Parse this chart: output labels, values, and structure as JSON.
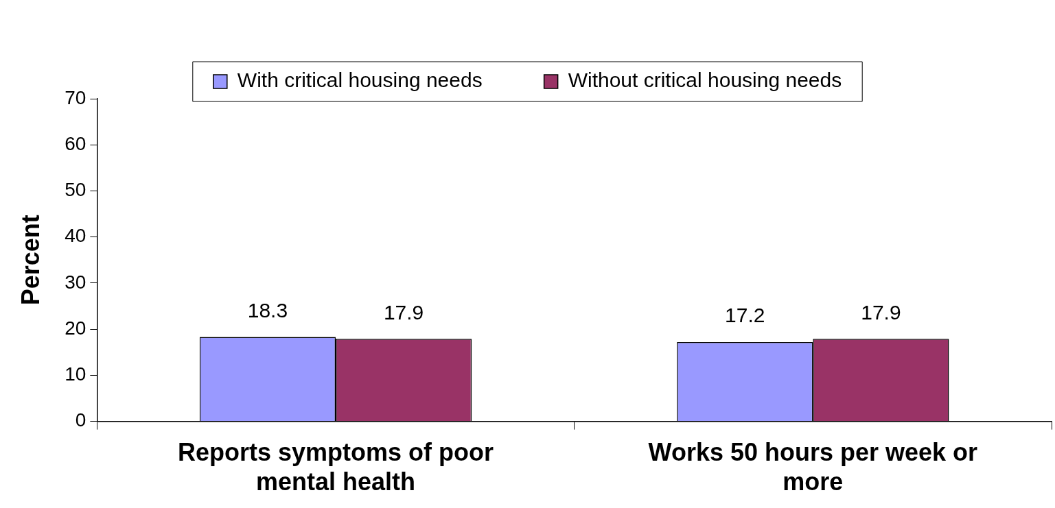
{
  "chart_data": {
    "type": "bar",
    "ylabel": "Percent",
    "categories": [
      "Reports symptoms of poor mental health",
      "Works 50 hours per week or more"
    ],
    "series": [
      {
        "name": "With critical housing needs",
        "color": "#9999ff",
        "values": [
          18.3,
          17.2
        ]
      },
      {
        "name": "Without critical housing needs",
        "color": "#993366",
        "values": [
          17.9,
          17.9
        ]
      }
    ],
    "ylim": [
      0,
      70
    ],
    "yticks": [
      0,
      10,
      20,
      30,
      40,
      50,
      60,
      70
    ],
    "grid": false,
    "legend": "top",
    "data_labels": true
  }
}
